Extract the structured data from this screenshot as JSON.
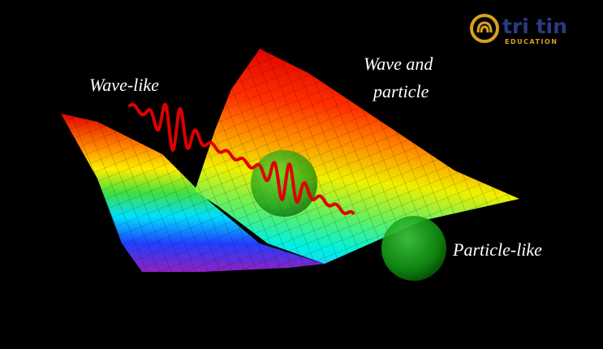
{
  "labels": {
    "wave_like": "Wave-like",
    "wave_and_particle": [
      "Wave and",
      "particle"
    ],
    "particle_like": "Particle-like"
  },
  "logo": {
    "name": "tri tin",
    "tagline": "EDUCATION"
  }
}
